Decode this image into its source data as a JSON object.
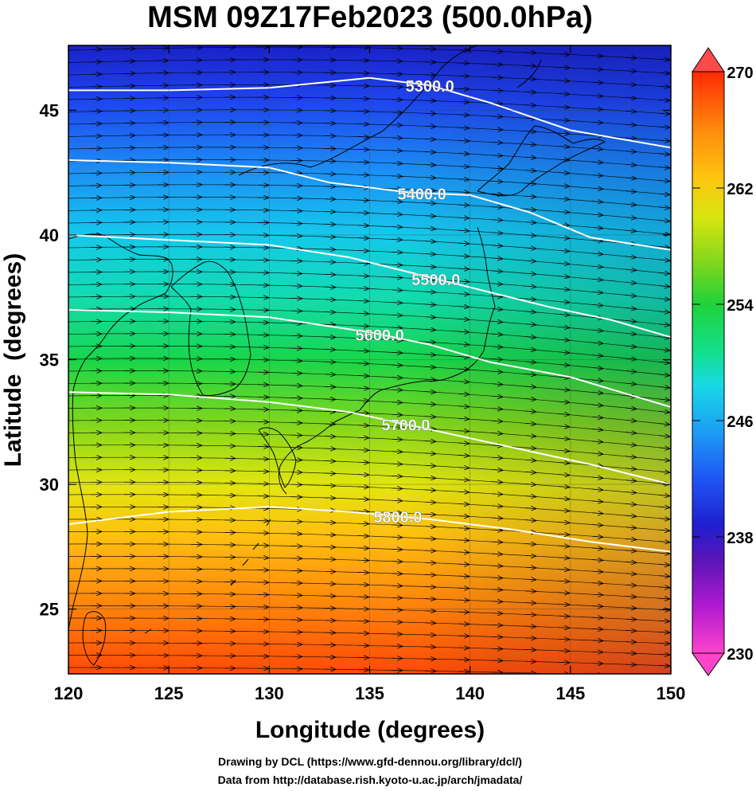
{
  "title": "MSM 09Z17Feb2023 (500.0hPa)",
  "xlabel": "Longitude (degrees)",
  "ylabel": "Latitude  (degrees)",
  "credits": [
    "Drawing by DCL (https://www.gfd-dennou.org/library/dcl/)",
    "Data from http://database.rish.kyoto-u.ac.jp/arch/jmadata/"
  ],
  "colors": {
    "contour": "#ffffff",
    "streamline": "#000000",
    "coastline": "#000000"
  },
  "chart_data": {
    "type": "heatmap",
    "description_field": "temperature (shaded) with geopotential height contours and wind streamlines",
    "xlim": [
      120,
      150
    ],
    "ylim": [
      22.4,
      47.6
    ],
    "x_ticks": [
      "120",
      "125",
      "130",
      "135",
      "140",
      "145",
      "150"
    ],
    "y_ticks": [
      "25",
      "30",
      "35",
      "40",
      "45"
    ],
    "colorbar": {
      "min": 230,
      "max": 270,
      "ticks": [
        "230",
        "238",
        "246",
        "254",
        "262",
        "270"
      ],
      "stops": [
        "#ff44cc",
        "#b01ad0",
        "#5b15b8",
        "#1f1fcf",
        "#1f55f5",
        "#1d9cf5",
        "#18d8e6",
        "#12e08a",
        "#1fd23a",
        "#7fd61c",
        "#d8e60f",
        "#ffc410",
        "#ff8a0c",
        "#ff4e08",
        "#ff2a05"
      ]
    },
    "contours": [
      {
        "label": "5300.0",
        "label_lon": 138.0,
        "points": [
          [
            120,
            45.8
          ],
          [
            125,
            45.8
          ],
          [
            130,
            45.9
          ],
          [
            135,
            46.3
          ],
          [
            138,
            46.0
          ],
          [
            141,
            45.3
          ],
          [
            145,
            44.2
          ],
          [
            150,
            43.5
          ]
        ]
      },
      {
        "label": "5400.0",
        "label_lon": 137.6,
        "points": [
          [
            120,
            43.0
          ],
          [
            125,
            42.9
          ],
          [
            130,
            42.7
          ],
          [
            133,
            42.1
          ],
          [
            137,
            41.7
          ],
          [
            140,
            41.6
          ],
          [
            143,
            40.9
          ],
          [
            146,
            39.9
          ],
          [
            150,
            39.4
          ]
        ]
      },
      {
        "label": "5500.0",
        "label_lon": 138.3,
        "points": [
          [
            120,
            40.0
          ],
          [
            125,
            39.8
          ],
          [
            130,
            39.6
          ],
          [
            134,
            39.1
          ],
          [
            137,
            38.5
          ],
          [
            140,
            37.9
          ],
          [
            144,
            37.1
          ],
          [
            147,
            36.6
          ],
          [
            150,
            35.9
          ]
        ]
      },
      {
        "label": "5600.0",
        "label_lon": 135.5,
        "points": [
          [
            120,
            37.0
          ],
          [
            125,
            36.9
          ],
          [
            130,
            36.7
          ],
          [
            135,
            36.1
          ],
          [
            138,
            35.6
          ],
          [
            141,
            34.9
          ],
          [
            145,
            34.3
          ],
          [
            150,
            33.1
          ]
        ]
      },
      {
        "label": "5700.0",
        "label_lon": 136.8,
        "points": [
          [
            120,
            33.7
          ],
          [
            125,
            33.6
          ],
          [
            130,
            33.3
          ],
          [
            134,
            32.9
          ],
          [
            138,
            32.2
          ],
          [
            142,
            31.5
          ],
          [
            146,
            30.8
          ],
          [
            150,
            30.0
          ]
        ]
      },
      {
        "label": "5800.0",
        "label_lon": 136.4,
        "points": [
          [
            120,
            28.4
          ],
          [
            125,
            28.9
          ],
          [
            130,
            29.1
          ],
          [
            134,
            28.9
          ],
          [
            138,
            28.6
          ],
          [
            142,
            28.2
          ],
          [
            146,
            27.7
          ],
          [
            150,
            27.3
          ]
        ]
      }
    ]
  }
}
